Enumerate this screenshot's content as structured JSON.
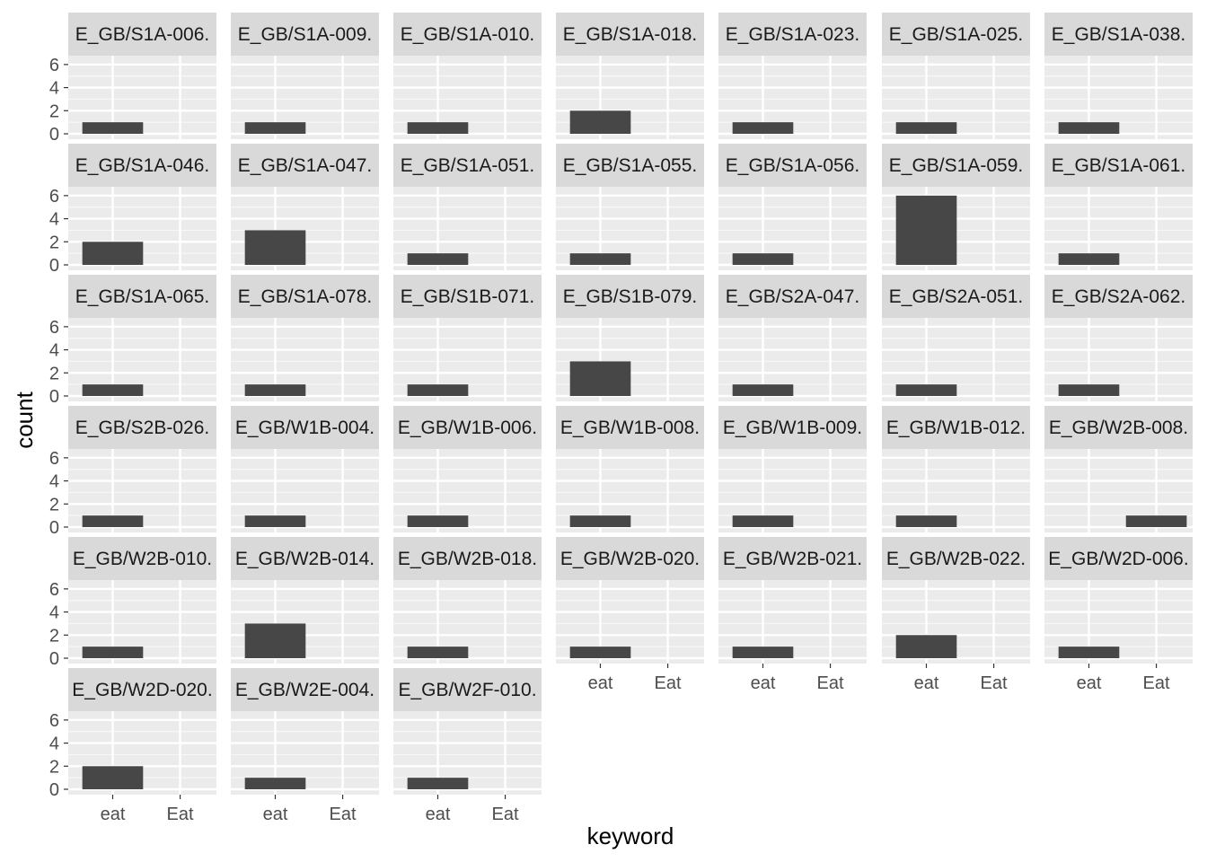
{
  "chart_data": {
    "type": "bar",
    "facet_layout": "wrap",
    "xlabel": "keyword",
    "ylabel": "count",
    "categories": [
      "eat",
      "Eat"
    ],
    "yticks": [
      0,
      2,
      4,
      6
    ],
    "ylim": [
      0,
      6.3
    ],
    "colors": {
      "panel_bg": "#ebebeb",
      "grid": "#ffffff",
      "strip_bg": "#d9d9d9",
      "bar": "#474747",
      "tick_text": "#4d4d4d",
      "strip_text": "#1a1a1a",
      "axis_title": "#000000"
    },
    "facets": [
      {
        "label": "E_GB/S1A-006.",
        "values": [
          1,
          0
        ]
      },
      {
        "label": "E_GB/S1A-009.",
        "values": [
          1,
          0
        ]
      },
      {
        "label": "E_GB/S1A-010.",
        "values": [
          1,
          0
        ]
      },
      {
        "label": "E_GB/S1A-018.",
        "values": [
          2,
          0
        ]
      },
      {
        "label": "E_GB/S1A-023.",
        "values": [
          1,
          0
        ]
      },
      {
        "label": "E_GB/S1A-025.",
        "values": [
          1,
          0
        ]
      },
      {
        "label": "E_GB/S1A-038.",
        "values": [
          1,
          0
        ]
      },
      {
        "label": "E_GB/S1A-046.",
        "values": [
          2,
          0
        ]
      },
      {
        "label": "E_GB/S1A-047.",
        "values": [
          3,
          0
        ]
      },
      {
        "label": "E_GB/S1A-051.",
        "values": [
          1,
          0
        ]
      },
      {
        "label": "E_GB/S1A-055.",
        "values": [
          1,
          0
        ]
      },
      {
        "label": "E_GB/S1A-056.",
        "values": [
          1,
          0
        ]
      },
      {
        "label": "E_GB/S1A-059.",
        "values": [
          6,
          0
        ]
      },
      {
        "label": "E_GB/S1A-061.",
        "values": [
          1,
          0
        ]
      },
      {
        "label": "E_GB/S1A-065.",
        "values": [
          1,
          0
        ]
      },
      {
        "label": "E_GB/S1A-078.",
        "values": [
          1,
          0
        ]
      },
      {
        "label": "E_GB/S1B-071.",
        "values": [
          1,
          0
        ]
      },
      {
        "label": "E_GB/S1B-079.",
        "values": [
          3,
          0
        ]
      },
      {
        "label": "E_GB/S2A-047.",
        "values": [
          1,
          0
        ]
      },
      {
        "label": "E_GB/S2A-051.",
        "values": [
          1,
          0
        ]
      },
      {
        "label": "E_GB/S2A-062.",
        "values": [
          1,
          0
        ]
      },
      {
        "label": "E_GB/S2B-026.",
        "values": [
          1,
          0
        ]
      },
      {
        "label": "E_GB/W1B-004.",
        "values": [
          1,
          0
        ]
      },
      {
        "label": "E_GB/W1B-006.",
        "values": [
          1,
          0
        ]
      },
      {
        "label": "E_GB/W1B-008.",
        "values": [
          1,
          0
        ]
      },
      {
        "label": "E_GB/W1B-009.",
        "values": [
          1,
          0
        ]
      },
      {
        "label": "E_GB/W1B-012.",
        "values": [
          1,
          0
        ]
      },
      {
        "label": "E_GB/W2B-008.",
        "values": [
          0,
          1
        ]
      },
      {
        "label": "E_GB/W2B-010.",
        "values": [
          1,
          0
        ]
      },
      {
        "label": "E_GB/W2B-014.",
        "values": [
          3,
          0
        ]
      },
      {
        "label": "E_GB/W2B-018.",
        "values": [
          1,
          0
        ]
      },
      {
        "label": "E_GB/W2B-020.",
        "values": [
          1,
          0
        ]
      },
      {
        "label": "E_GB/W2B-021.",
        "values": [
          1,
          0
        ]
      },
      {
        "label": "E_GB/W2B-022.",
        "values": [
          2,
          0
        ]
      },
      {
        "label": "E_GB/W2D-006.",
        "values": [
          1,
          0
        ]
      },
      {
        "label": "E_GB/W2D-020.",
        "values": [
          2,
          0
        ]
      },
      {
        "label": "E_GB/W2E-004.",
        "values": [
          1,
          0
        ]
      },
      {
        "label": "E_GB/W2F-010.",
        "values": [
          1,
          0
        ]
      }
    ]
  }
}
